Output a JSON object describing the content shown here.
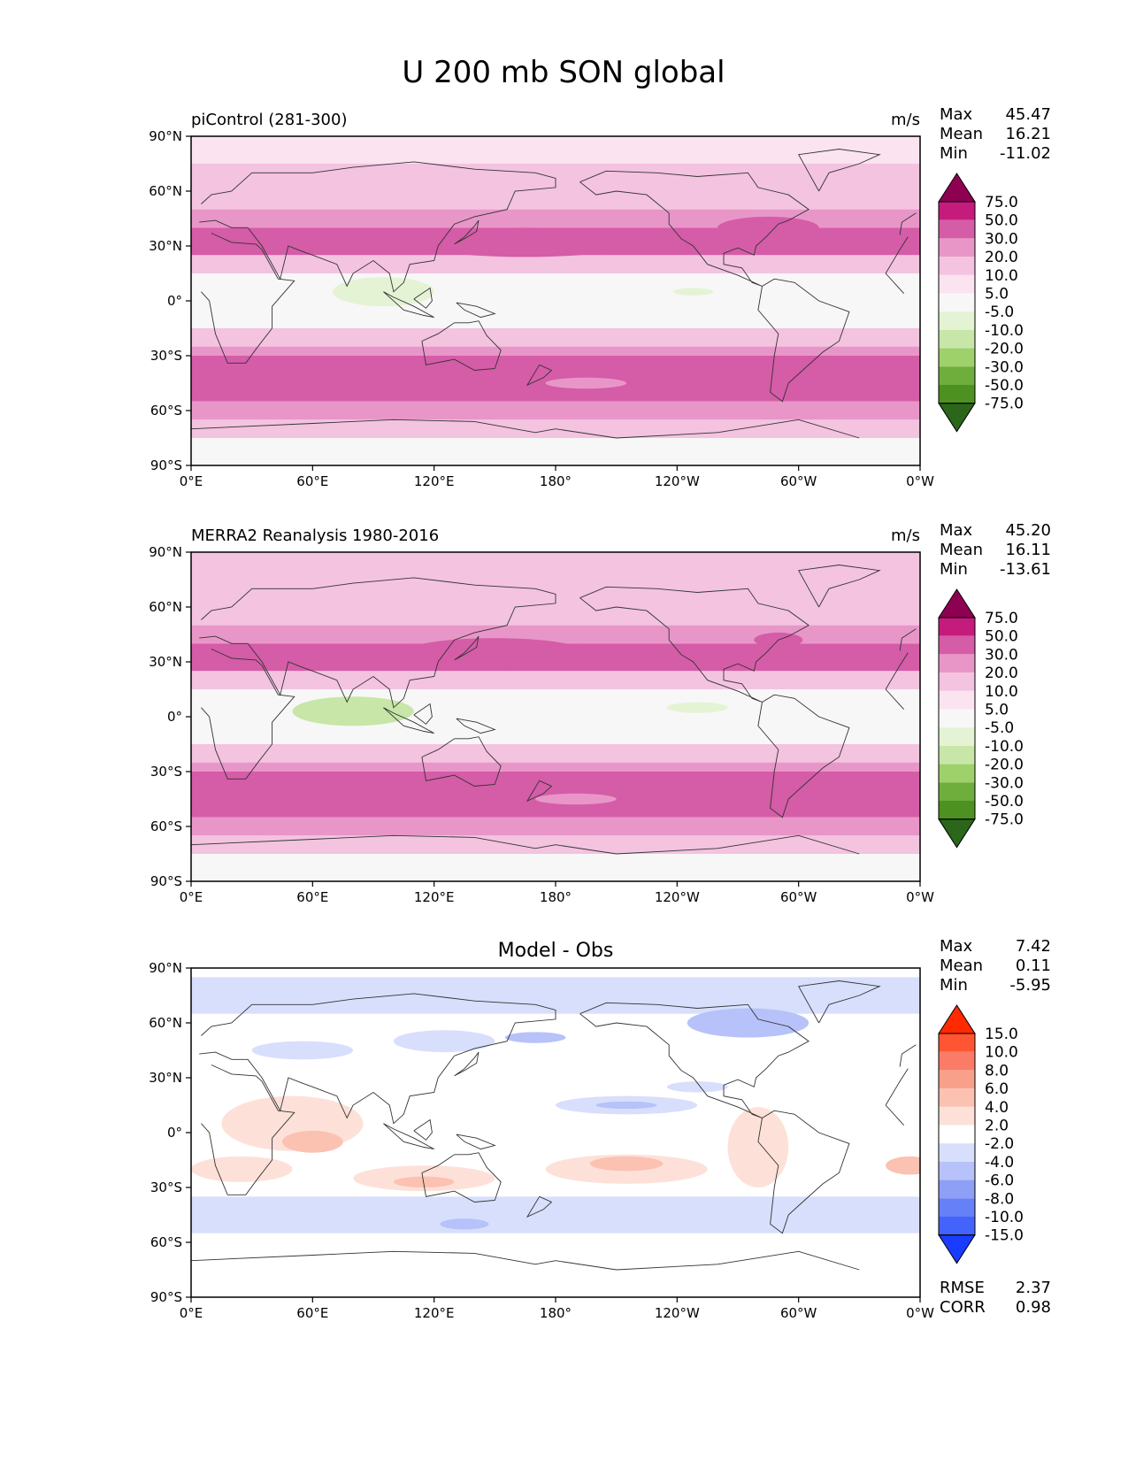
{
  "figure": {
    "title": "U 200 mb SON global"
  },
  "chart_data": [
    {
      "type": "heatmap",
      "title": "piControl (281-300)",
      "units": "m/s",
      "stats": {
        "max_label": "Max",
        "max": "45.47",
        "mean_label": "Mean",
        "mean": "16.21",
        "min_label": "Min",
        "min": "-11.02"
      },
      "x_ticks": [
        "0°E",
        "60°E",
        "120°E",
        "180°",
        "120°W",
        "60°W",
        "0°W"
      ],
      "y_ticks": [
        "90°N",
        "60°N",
        "30°N",
        "0°",
        "30°S",
        "60°S",
        "90°S"
      ],
      "xlim": [
        0,
        360
      ],
      "ylim": [
        -90,
        90
      ],
      "colorbar": {
        "levels": [
          "75.0",
          "50.0",
          "30.0",
          "20.0",
          "10.0",
          "5.0",
          "-5.0",
          "-10.0",
          "-20.0",
          "-30.0",
          "-50.0",
          "-75.0"
        ],
        "colors": [
          "#8e0152",
          "#c51b7d",
          "#d55ca7",
          "#e896c8",
          "#f3c3e0",
          "#fbe3f0",
          "#f7f7f7",
          "#e5f3d5",
          "#c7e6a8",
          "#9ed16a",
          "#6fad3d",
          "#4d9221",
          "#2b661a"
        ]
      },
      "bands": [
        {
          "lat": [
            75,
            90
          ],
          "v": 5.0
        },
        {
          "lat": [
            60,
            75
          ],
          "v": 10.0
        },
        {
          "lat": [
            50,
            60
          ],
          "v": 15.0
        },
        {
          "lat": [
            40,
            50
          ],
          "v": 25.0
        },
        {
          "lat": [
            25,
            40
          ],
          "v": 35.0
        },
        {
          "lat": [
            15,
            25
          ],
          "v": 15.0
        },
        {
          "lat": [
            5,
            15
          ],
          "v": 3.0
        },
        {
          "lat": [
            -5,
            5
          ],
          "v": -2.0
        },
        {
          "lat": [
            -15,
            -5
          ],
          "v": 4.0
        },
        {
          "lat": [
            -25,
            -15
          ],
          "v": 15.0
        },
        {
          "lat": [
            -30,
            -25
          ],
          "v": 25.0
        },
        {
          "lat": [
            -55,
            -30
          ],
          "v": 35.0
        },
        {
          "lat": [
            -65,
            -55
          ],
          "v": 25.0
        },
        {
          "lat": [
            -75,
            -65
          ],
          "v": 10.0
        },
        {
          "lat": [
            -90,
            -75
          ],
          "v": 3.0
        }
      ],
      "blobs": [
        {
          "lon": 95,
          "lat": 5,
          "rlon": 25,
          "rlat": 8,
          "v": -7.0
        },
        {
          "lon": 165,
          "lat": 32,
          "rlon": 55,
          "rlat": 8,
          "v": 40.0
        },
        {
          "lon": 285,
          "lat": 40,
          "rlon": 25,
          "rlat": 6,
          "v": 40.0
        },
        {
          "lon": 195,
          "lat": -45,
          "rlon": 20,
          "rlat": 3,
          "v": 20.0
        },
        {
          "lon": 248,
          "lat": 5,
          "rlon": 10,
          "rlat": 2,
          "v": -7.0
        }
      ]
    },
    {
      "type": "heatmap",
      "title": "MERRA2 Reanalysis 1980-2016",
      "units": "m/s",
      "stats": {
        "max_label": "Max",
        "max": "45.20",
        "mean_label": "Mean",
        "mean": "16.11",
        "min_label": "Min",
        "min": "-13.61"
      },
      "x_ticks": [
        "0°E",
        "60°E",
        "120°E",
        "180°",
        "120°W",
        "60°W",
        "0°W"
      ],
      "y_ticks": [
        "90°N",
        "60°N",
        "30°N",
        "0°",
        "30°S",
        "60°S",
        "90°S"
      ],
      "xlim": [
        0,
        360
      ],
      "ylim": [
        -90,
        90
      ],
      "colorbar": {
        "levels": [
          "75.0",
          "50.0",
          "30.0",
          "20.0",
          "10.0",
          "5.0",
          "-5.0",
          "-10.0",
          "-20.0",
          "-30.0",
          "-50.0",
          "-75.0"
        ],
        "colors": [
          "#8e0152",
          "#c51b7d",
          "#d55ca7",
          "#e896c8",
          "#f3c3e0",
          "#fbe3f0",
          "#f7f7f7",
          "#e5f3d5",
          "#c7e6a8",
          "#9ed16a",
          "#6fad3d",
          "#4d9221",
          "#2b661a"
        ]
      },
      "bands": [
        {
          "lat": [
            75,
            90
          ],
          "v": 10.0
        },
        {
          "lat": [
            60,
            75
          ],
          "v": 12.0
        },
        {
          "lat": [
            50,
            60
          ],
          "v": 15.0
        },
        {
          "lat": [
            40,
            50
          ],
          "v": 25.0
        },
        {
          "lat": [
            25,
            40
          ],
          "v": 35.0
        },
        {
          "lat": [
            15,
            25
          ],
          "v": 15.0
        },
        {
          "lat": [
            5,
            15
          ],
          "v": 3.0
        },
        {
          "lat": [
            -5,
            5
          ],
          "v": -2.0
        },
        {
          "lat": [
            -15,
            -5
          ],
          "v": 4.0
        },
        {
          "lat": [
            -25,
            -15
          ],
          "v": 15.0
        },
        {
          "lat": [
            -30,
            -25
          ],
          "v": 25.0
        },
        {
          "lat": [
            -55,
            -30
          ],
          "v": 35.0
        },
        {
          "lat": [
            -65,
            -55
          ],
          "v": 25.0
        },
        {
          "lat": [
            -75,
            -65
          ],
          "v": 10.0
        },
        {
          "lat": [
            -90,
            -75
          ],
          "v": 3.0
        }
      ],
      "blobs": [
        {
          "lon": 80,
          "lat": 3,
          "rlon": 30,
          "rlat": 8,
          "v": -12.0
        },
        {
          "lon": 150,
          "lat": 35,
          "rlon": 45,
          "rlat": 8,
          "v": 40.0
        },
        {
          "lon": 290,
          "lat": 42,
          "rlon": 12,
          "rlat": 4,
          "v": 40.0
        },
        {
          "lon": 190,
          "lat": -45,
          "rlon": 20,
          "rlat": 3,
          "v": 20.0
        },
        {
          "lon": 250,
          "lat": 5,
          "rlon": 15,
          "rlat": 3,
          "v": -7.0
        }
      ]
    },
    {
      "type": "heatmap",
      "title": "Model - Obs",
      "units": "",
      "stats": {
        "max_label": "Max",
        "max": "7.42",
        "mean_label": "Mean",
        "mean": "0.11",
        "min_label": "Min",
        "min": "-5.95"
      },
      "metrics": {
        "rmse_label": "RMSE",
        "rmse": "2.37",
        "corr_label": "CORR",
        "corr": "0.98"
      },
      "x_ticks": [
        "0°E",
        "60°E",
        "120°E",
        "180°",
        "120°W",
        "60°W",
        "0°W"
      ],
      "y_ticks": [
        "90°N",
        "60°N",
        "30°N",
        "0°",
        "30°S",
        "60°S",
        "90°S"
      ],
      "xlim": [
        0,
        360
      ],
      "ylim": [
        -90,
        90
      ],
      "colorbar": {
        "levels": [
          "15.0",
          "10.0",
          "8.0",
          "6.0",
          "4.0",
          "2.0",
          "-2.0",
          "-4.0",
          "-6.0",
          "-8.0",
          "-10.0",
          "-15.0"
        ],
        "colors": [
          "#ff2a00",
          "#ff5533",
          "#fa7c66",
          "#f9a08a",
          "#fbc1b1",
          "#fde1d8",
          "#ffffff",
          "#d8dffc",
          "#b6c2f9",
          "#8da0f5",
          "#6680f7",
          "#4463fb",
          "#1a3cff"
        ]
      },
      "bands": [
        {
          "lat": [
            -90,
            90
          ],
          "v": 0.0
        },
        {
          "lat": [
            65,
            85
          ],
          "v": -3.0
        },
        {
          "lat": [
            -55,
            -35
          ],
          "v": -3.0
        }
      ],
      "blobs": [
        {
          "lon": 50,
          "lat": 5,
          "rlon": 35,
          "rlat": 15,
          "v": 3.0
        },
        {
          "lon": 60,
          "lat": -5,
          "rlon": 15,
          "rlat": 6,
          "v": 5.0
        },
        {
          "lon": 25,
          "lat": -20,
          "rlon": 25,
          "rlat": 7,
          "v": 3.0
        },
        {
          "lon": 115,
          "lat": -25,
          "rlon": 35,
          "rlat": 7,
          "v": 3.0
        },
        {
          "lon": 115,
          "lat": -27,
          "rlon": 15,
          "rlat": 3,
          "v": 5.0
        },
        {
          "lon": 215,
          "lat": -20,
          "rlon": 40,
          "rlat": 8,
          "v": 3.0
        },
        {
          "lon": 215,
          "lat": -17,
          "rlon": 18,
          "rlat": 4,
          "v": 5.0
        },
        {
          "lon": 280,
          "lat": -8,
          "rlon": 15,
          "rlat": 22,
          "v": 3.0
        },
        {
          "lon": 355,
          "lat": -18,
          "rlon": 12,
          "rlat": 5,
          "v": 5.0
        },
        {
          "lon": 125,
          "lat": 50,
          "rlon": 25,
          "rlat": 6,
          "v": -3.0
        },
        {
          "lon": 55,
          "lat": 45,
          "rlon": 25,
          "rlat": 5,
          "v": -3.0
        },
        {
          "lon": 275,
          "lat": 60,
          "rlon": 30,
          "rlat": 8,
          "v": -5.0
        },
        {
          "lon": 170,
          "lat": 52,
          "rlon": 15,
          "rlat": 3,
          "v": -5.0
        },
        {
          "lon": 215,
          "lat": 15,
          "rlon": 35,
          "rlat": 5,
          "v": -3.0
        },
        {
          "lon": 215,
          "lat": 15,
          "rlon": 15,
          "rlat": 2,
          "v": -5.0
        },
        {
          "lon": 135,
          "lat": -50,
          "rlon": 12,
          "rlat": 3,
          "v": -5.0
        },
        {
          "lon": 250,
          "lat": 25,
          "rlon": 15,
          "rlat": 3,
          "v": -3.0
        }
      ]
    }
  ]
}
